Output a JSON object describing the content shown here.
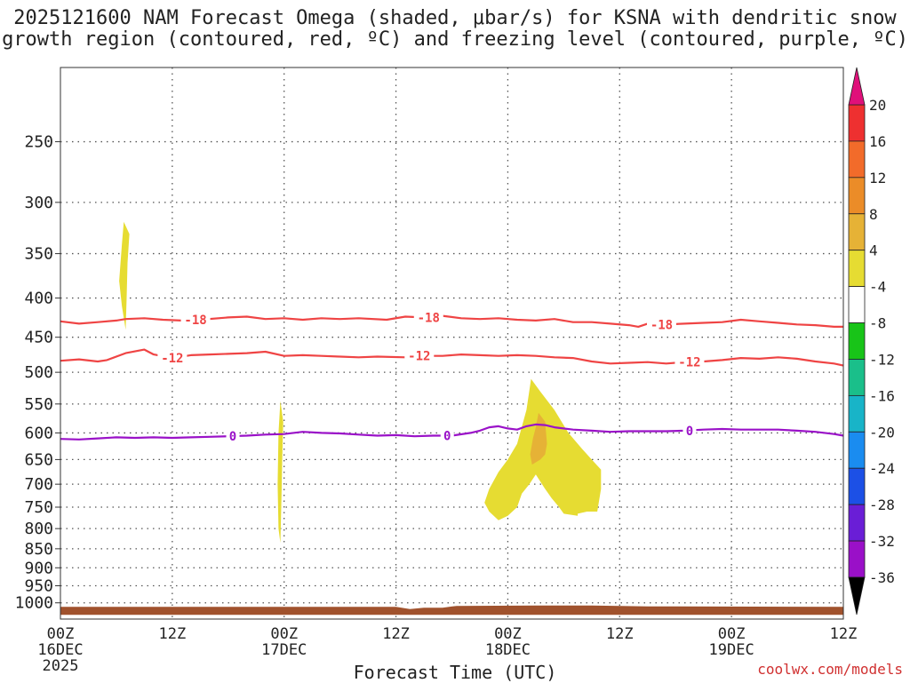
{
  "title_line1": "2025121600 NAM Forecast Omega (shaded, μbar/s) for KSNA with dendritic snow",
  "title_line2": "growth region (contoured, red, ºC) and freezing level (contoured, purple, ºC)",
  "credit": "coolwx.com/models",
  "chart_data": {
    "type": "time-height",
    "xlabel": "Forecast Time (UTC)",
    "ylabel": "",
    "x_ticks": [
      {
        "hour": 0,
        "lines": [
          "00Z",
          "16DEC",
          "2025"
        ]
      },
      {
        "hour": 12,
        "lines": [
          "12Z"
        ]
      },
      {
        "hour": 24,
        "lines": [
          "00Z",
          "17DEC"
        ]
      },
      {
        "hour": 36,
        "lines": [
          "12Z"
        ]
      },
      {
        "hour": 48,
        "lines": [
          "00Z",
          "18DEC"
        ]
      },
      {
        "hour": 60,
        "lines": [
          "12Z"
        ]
      },
      {
        "hour": 72,
        "lines": [
          "00Z",
          "19DEC"
        ]
      },
      {
        "hour": 84,
        "lines": [
          "12Z"
        ]
      }
    ],
    "xlim": [
      0,
      84
    ],
    "y_ticks": [
      250,
      300,
      350,
      400,
      450,
      500,
      550,
      600,
      650,
      700,
      750,
      800,
      850,
      900,
      950,
      1000
    ],
    "ylim": [
      200,
      1050
    ],
    "y_scale": "log-pressure (inverted)",
    "grid": "dotted",
    "colorbar": {
      "labels": [
        "20",
        "16",
        "12",
        "8",
        "4",
        "-4",
        "-8",
        "-12",
        "-16",
        "-20",
        "-24",
        "-28",
        "-32",
        "-36"
      ],
      "bands": [
        {
          "from": 16,
          "to": 20,
          "color": "#ee3030"
        },
        {
          "from": 12,
          "to": 16,
          "color": "#f26b2a"
        },
        {
          "from": 8,
          "to": 12,
          "color": "#eb8c28"
        },
        {
          "from": 4,
          "to": 8,
          "color": "#e6b236"
        },
        {
          "from": 0,
          "to": 4,
          "color": "#e6dc32"
        },
        {
          "from": -4,
          "to": 4,
          "color": "#ffffff"
        },
        {
          "from": -8,
          "to": -4,
          "color": "#18c418"
        },
        {
          "from": -12,
          "to": -8,
          "color": "#1abf8a"
        },
        {
          "from": -16,
          "to": -12,
          "color": "#18b4c8"
        },
        {
          "from": -20,
          "to": -16,
          "color": "#1a8cf0"
        },
        {
          "from": -24,
          "to": -20,
          "color": "#1c50e6"
        },
        {
          "from": -28,
          "to": -24,
          "color": "#6a1ed6"
        },
        {
          "from": -32,
          "to": -28,
          "color": "#9a10c8"
        },
        {
          "from": -36,
          "to": -32,
          "color": "#a8a8a8"
        }
      ],
      "top_arrow_color": "#e0107a",
      "bottom_arrow_color": "#000000"
    },
    "contours": [
      {
        "name": "-18",
        "color": "#ef4444",
        "labels": [
          {
            "hour": 14.5,
            "label": "-18"
          },
          {
            "hour": 39.5,
            "label": "-18"
          },
          {
            "hour": 64.5,
            "label": "-18"
          }
        ],
        "points": [
          [
            0,
            429
          ],
          [
            2,
            432
          ],
          [
            4,
            430
          ],
          [
            6,
            428
          ],
          [
            7,
            426
          ],
          [
            9,
            425
          ],
          [
            11,
            427
          ],
          [
            13,
            428
          ],
          [
            15,
            427
          ],
          [
            18,
            424
          ],
          [
            20,
            423
          ],
          [
            22,
            426
          ],
          [
            24,
            425
          ],
          [
            26,
            427
          ],
          [
            28,
            425
          ],
          [
            30,
            426
          ],
          [
            32,
            425
          ],
          [
            35,
            427
          ],
          [
            37,
            423
          ],
          [
            39,
            424
          ],
          [
            41,
            422
          ],
          [
            43,
            425
          ],
          [
            45,
            426
          ],
          [
            47,
            425
          ],
          [
            49,
            427
          ],
          [
            51,
            428
          ],
          [
            53,
            426
          ],
          [
            55,
            430
          ],
          [
            57,
            430
          ],
          [
            59,
            432
          ],
          [
            61,
            434
          ],
          [
            62,
            436
          ],
          [
            63,
            432
          ],
          [
            65,
            433
          ],
          [
            67,
            432
          ],
          [
            69,
            431
          ],
          [
            71,
            430
          ],
          [
            73,
            427
          ],
          [
            75,
            429
          ],
          [
            77,
            431
          ],
          [
            79,
            433
          ],
          [
            81,
            434
          ],
          [
            83,
            436
          ],
          [
            84,
            436
          ]
        ]
      },
      {
        "name": "-12",
        "color": "#ef4444",
        "labels": [
          {
            "hour": 12,
            "label": "-12"
          },
          {
            "hour": 38.5,
            "label": "-12"
          },
          {
            "hour": 67.5,
            "label": "-12"
          }
        ],
        "points": [
          [
            0,
            483
          ],
          [
            2,
            481
          ],
          [
            4,
            484
          ],
          [
            5,
            482
          ],
          [
            7,
            472
          ],
          [
            9,
            467
          ],
          [
            10,
            474
          ],
          [
            12,
            479
          ],
          [
            14,
            475
          ],
          [
            16,
            474
          ],
          [
            18,
            473
          ],
          [
            20,
            472
          ],
          [
            22,
            470
          ],
          [
            24,
            476
          ],
          [
            26,
            475
          ],
          [
            28,
            476
          ],
          [
            30,
            477
          ],
          [
            32,
            478
          ],
          [
            34,
            477
          ],
          [
            37,
            478
          ],
          [
            39,
            476
          ],
          [
            41,
            476
          ],
          [
            43,
            474
          ],
          [
            45,
            475
          ],
          [
            47,
            476
          ],
          [
            49,
            475
          ],
          [
            51,
            476
          ],
          [
            53,
            478
          ],
          [
            55,
            479
          ],
          [
            57,
            484
          ],
          [
            59,
            487
          ],
          [
            61,
            486
          ],
          [
            63,
            485
          ],
          [
            65,
            487
          ],
          [
            67,
            485
          ],
          [
            69,
            484
          ],
          [
            71,
            482
          ],
          [
            73,
            479
          ],
          [
            75,
            480
          ],
          [
            77,
            478
          ],
          [
            79,
            480
          ],
          [
            81,
            484
          ],
          [
            83,
            487
          ],
          [
            84,
            490
          ]
        ]
      },
      {
        "name": "0",
        "color": "#9a12c8",
        "labels": [
          {
            "hour": 18.5,
            "label": "0"
          },
          {
            "hour": 41.5,
            "label": "0"
          },
          {
            "hour": 67.5,
            "label": "0"
          }
        ],
        "points": [
          [
            0,
            611
          ],
          [
            2,
            612
          ],
          [
            4,
            610
          ],
          [
            6,
            608
          ],
          [
            8,
            609
          ],
          [
            10,
            608
          ],
          [
            12,
            609
          ],
          [
            14,
            608
          ],
          [
            16,
            607
          ],
          [
            18,
            606
          ],
          [
            20,
            605
          ],
          [
            22,
            603
          ],
          [
            24,
            602
          ],
          [
            26,
            598
          ],
          [
            28,
            600
          ],
          [
            30,
            601
          ],
          [
            32,
            603
          ],
          [
            34,
            605
          ],
          [
            36,
            604
          ],
          [
            38,
            606
          ],
          [
            40,
            605
          ],
          [
            42,
            605
          ],
          [
            44,
            600
          ],
          [
            45,
            596
          ],
          [
            46,
            590
          ],
          [
            47,
            588
          ],
          [
            48,
            592
          ],
          [
            49,
            594
          ],
          [
            50,
            588
          ],
          [
            51,
            585
          ],
          [
            52,
            586
          ],
          [
            53,
            590
          ],
          [
            55,
            594
          ],
          [
            57,
            596
          ],
          [
            59,
            598
          ],
          [
            61,
            597
          ],
          [
            63,
            597
          ],
          [
            65,
            597
          ],
          [
            67,
            596
          ],
          [
            69,
            594
          ],
          [
            71,
            593
          ],
          [
            73,
            594
          ],
          [
            75,
            594
          ],
          [
            77,
            594
          ],
          [
            79,
            596
          ],
          [
            81,
            598
          ],
          [
            83,
            602
          ],
          [
            84,
            605
          ]
        ]
      }
    ],
    "shaded_regions": [
      {
        "name": "omega-4-8-a",
        "value_range": "4 to 8",
        "color": "#e6dc32",
        "points": [
          [
            6.8,
            318
          ],
          [
            7.4,
            330
          ],
          [
            7.2,
            360
          ],
          [
            7.1,
            400
          ],
          [
            7.0,
            440
          ],
          [
            6.6,
            410
          ],
          [
            6.3,
            380
          ],
          [
            6.6,
            340
          ]
        ]
      },
      {
        "name": "omega-4-8-b",
        "value_range": "4 to 8",
        "color": "#e6dc32",
        "points": [
          [
            23.6,
            545
          ],
          [
            23.9,
            580
          ],
          [
            23.8,
            650
          ],
          [
            23.7,
            740
          ],
          [
            23.6,
            835
          ],
          [
            23.4,
            800
          ],
          [
            23.3,
            700
          ],
          [
            23.4,
            600
          ]
        ]
      },
      {
        "name": "omega-4-8-c",
        "value_range": "4 to 8",
        "color": "#e6dc32",
        "points": [
          [
            50.5,
            510
          ],
          [
            51.5,
            530
          ],
          [
            53,
            560
          ],
          [
            54.5,
            600
          ],
          [
            56,
            630
          ],
          [
            57,
            650
          ],
          [
            58,
            670
          ],
          [
            58,
            710
          ],
          [
            57.6,
            760
          ],
          [
            56.5,
            760
          ],
          [
            55.5,
            765
          ],
          [
            55.5,
            770
          ],
          [
            54,
            765
          ],
          [
            53.5,
            750
          ],
          [
            52.7,
            730
          ],
          [
            52,
            710
          ],
          [
            51,
            680
          ],
          [
            50.3,
            700
          ],
          [
            49.5,
            720
          ],
          [
            49,
            750
          ],
          [
            48,
            770
          ],
          [
            47,
            780
          ],
          [
            46,
            760
          ],
          [
            45.5,
            740
          ],
          [
            46,
            710
          ],
          [
            47,
            675
          ],
          [
            48,
            650
          ],
          [
            49,
            620
          ],
          [
            50,
            560
          ]
        ]
      },
      {
        "name": "omega-8-12",
        "value_range": "8 to 12",
        "color": "#e6b236",
        "points": [
          [
            51.3,
            565
          ],
          [
            52,
            580
          ],
          [
            52.2,
            620
          ],
          [
            52,
            640
          ],
          [
            51.5,
            650
          ],
          [
            50.6,
            660
          ],
          [
            50.4,
            640
          ],
          [
            50.7,
            610
          ],
          [
            51,
            590
          ]
        ]
      }
    ],
    "terrain_color": "#a0522d"
  }
}
